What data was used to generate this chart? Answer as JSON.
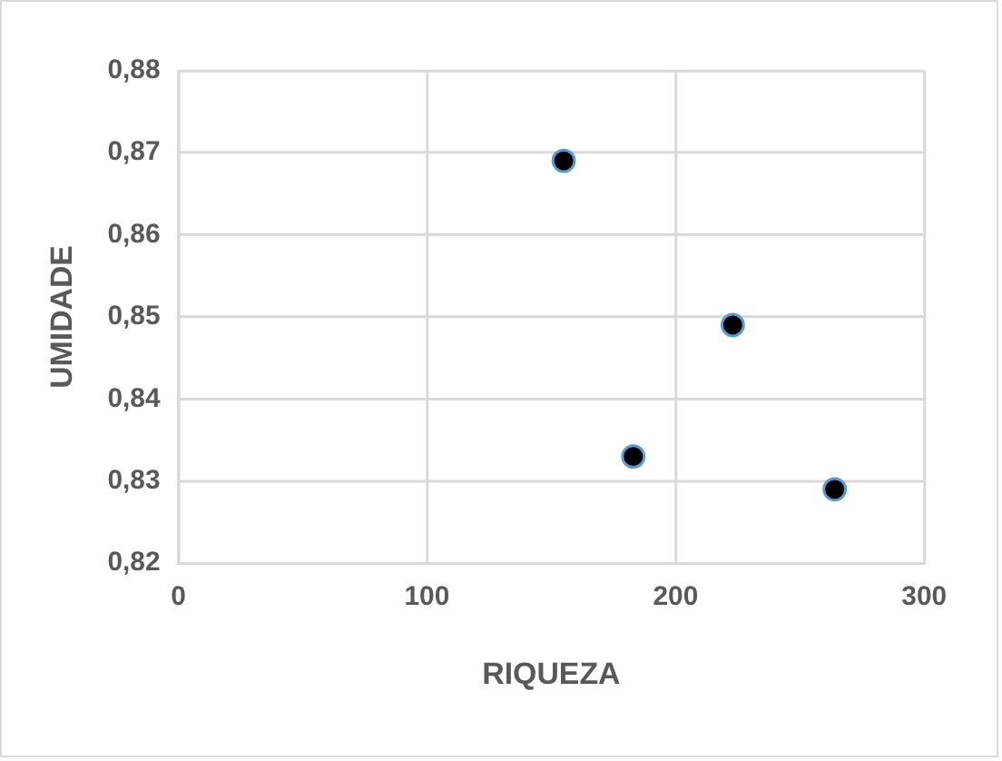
{
  "chart_data": {
    "type": "scatter",
    "xlabel": "RIQUEZA",
    "ylabel": "UMIDADE",
    "x": [
      155,
      183,
      223,
      264
    ],
    "series": [
      {
        "color": "#000000",
        "values": [
          0.869,
          0.833,
          0.849,
          0.829
        ]
      }
    ],
    "xlim": [
      0,
      300
    ],
    "xticks": [
      0,
      100,
      200,
      300
    ],
    "ylim": [
      0.82,
      0.88
    ],
    "yticks": [
      {
        "value": 0.82,
        "label": "0,82"
      },
      {
        "value": 0.83,
        "label": "0,83"
      },
      {
        "value": 0.84,
        "label": "0,84"
      },
      {
        "value": 0.85,
        "label": "0,85"
      },
      {
        "value": 0.86,
        "label": "0,86"
      },
      {
        "value": 0.87,
        "label": "0,87"
      },
      {
        "value": 0.88,
        "label": "0,88"
      }
    ],
    "grid": true,
    "marker": "circle",
    "legend": false
  }
}
